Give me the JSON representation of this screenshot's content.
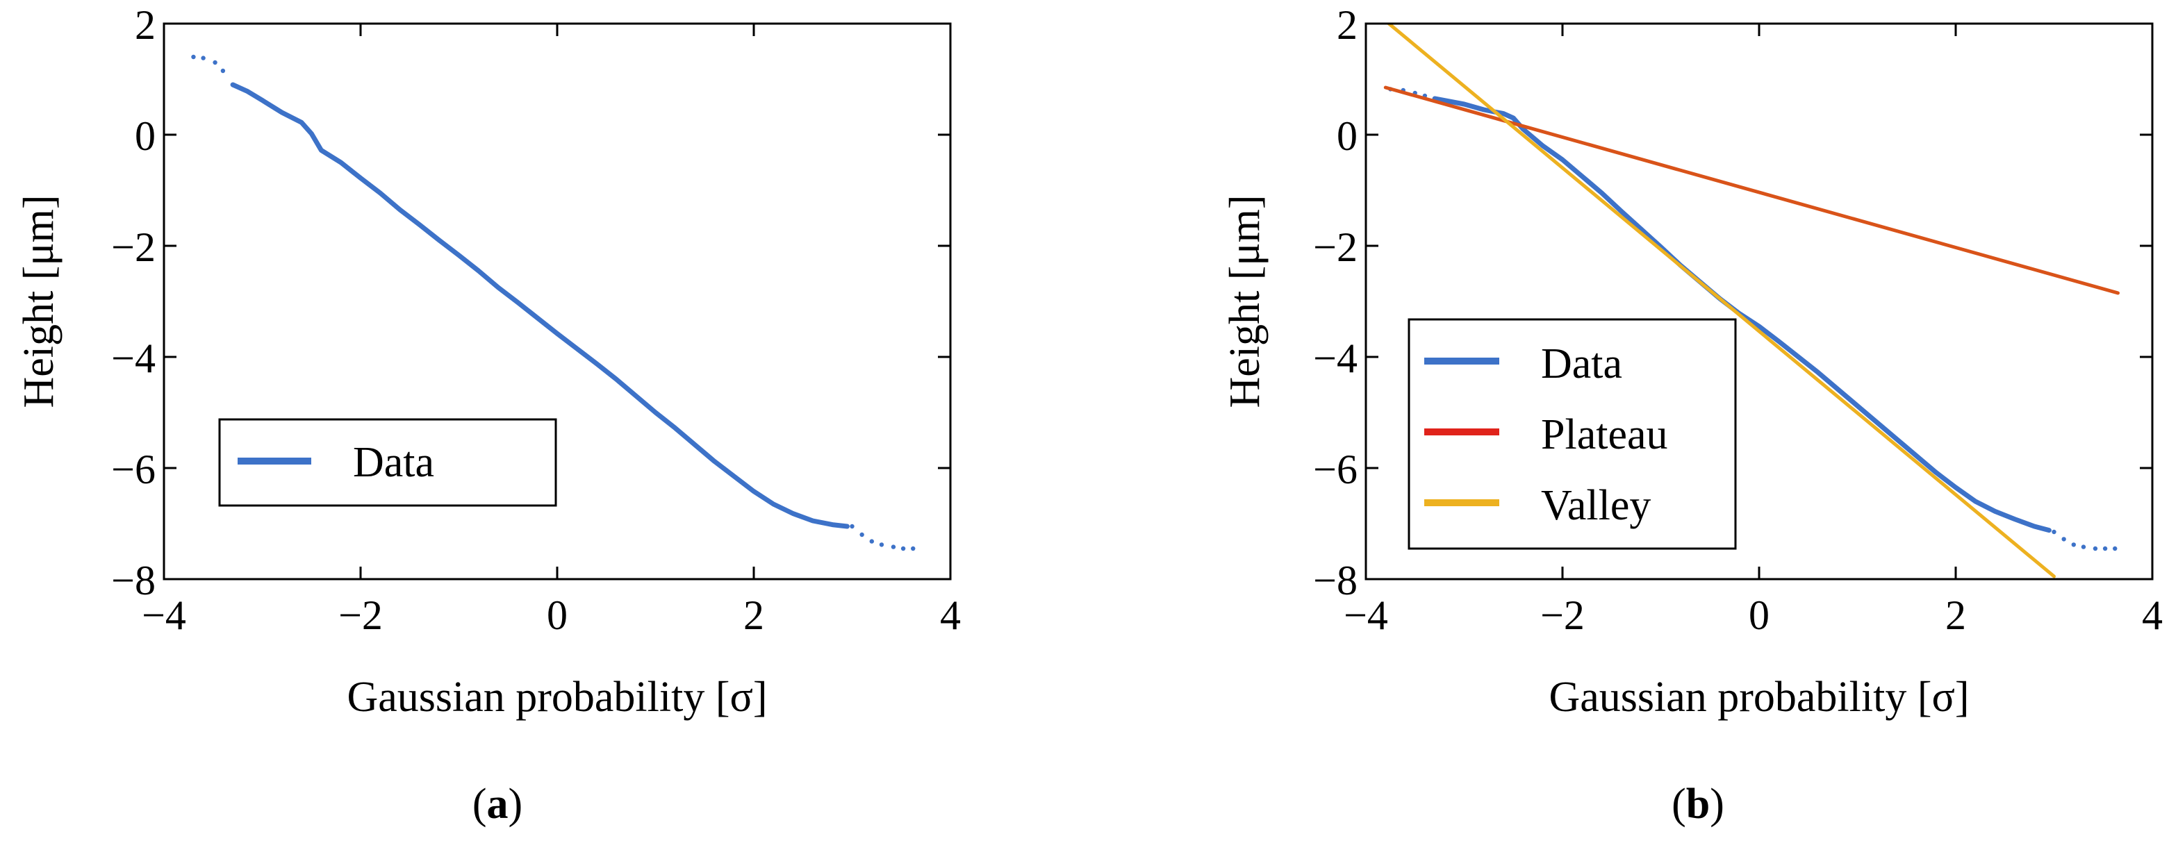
{
  "chart_data": [
    {
      "type": "line",
      "panel_label": "(a)",
      "panel_letter": "a",
      "xlabel": "Gaussian probability [σ]",
      "ylabel": "Height [μm]",
      "xlim": [
        -4,
        4
      ],
      "ylim": [
        -8,
        2
      ],
      "xticks": [
        -4,
        -2,
        0,
        2,
        4
      ],
      "yticks": [
        2,
        0,
        -2,
        -4,
        -6,
        -8
      ],
      "xtick_labels": [
        "−4",
        "−2",
        "0",
        "2",
        "4"
      ],
      "ytick_labels": [
        "2",
        "0",
        "−2",
        "−4",
        "−6",
        "−8"
      ],
      "legend_position": "lower-left",
      "series": [
        {
          "name": "Data",
          "color": "#3d72c8",
          "style": "scatter-line",
          "sparse_points": [
            {
              "x": -3.7,
              "y": 1.4
            },
            {
              "x": -3.6,
              "y": 1.38
            },
            {
              "x": -3.48,
              "y": 1.3
            },
            {
              "x": -3.4,
              "y": 1.15
            },
            {
              "x": 3.0,
              "y": -7.05
            },
            {
              "x": 3.1,
              "y": -7.2
            },
            {
              "x": 3.2,
              "y": -7.32
            },
            {
              "x": 3.3,
              "y": -7.38
            },
            {
              "x": 3.42,
              "y": -7.42
            },
            {
              "x": 3.52,
              "y": -7.45
            },
            {
              "x": 3.62,
              "y": -7.45
            }
          ],
          "x": [
            -3.3,
            -3.15,
            -3.0,
            -2.8,
            -2.6,
            -2.5,
            -2.4,
            -2.2,
            -2.0,
            -1.8,
            -1.6,
            -1.4,
            -1.2,
            -1.0,
            -0.8,
            -0.6,
            -0.4,
            -0.2,
            0.0,
            0.2,
            0.4,
            0.6,
            0.8,
            1.0,
            1.2,
            1.4,
            1.6,
            1.8,
            2.0,
            2.2,
            2.4,
            2.6,
            2.8,
            2.95
          ],
          "y": [
            0.9,
            0.78,
            0.62,
            0.4,
            0.22,
            0.02,
            -0.28,
            -0.5,
            -0.78,
            -1.05,
            -1.35,
            -1.62,
            -1.9,
            -2.17,
            -2.45,
            -2.75,
            -3.02,
            -3.3,
            -3.58,
            -3.85,
            -4.12,
            -4.4,
            -4.7,
            -5.0,
            -5.28,
            -5.58,
            -5.88,
            -6.15,
            -6.42,
            -6.65,
            -6.82,
            -6.95,
            -7.02,
            -7.05
          ]
        }
      ]
    },
    {
      "type": "line",
      "panel_label": "(b)",
      "panel_letter": "b",
      "xlabel": "Gaussian probability [σ]",
      "ylabel": "Height [μm]",
      "xlim": [
        -4,
        4
      ],
      "ylim": [
        -8,
        2
      ],
      "xticks": [
        -4,
        -2,
        0,
        2,
        4
      ],
      "yticks": [
        2,
        0,
        -2,
        -4,
        -6,
        -8
      ],
      "xtick_labels": [
        "−4",
        "−2",
        "0",
        "2",
        "4"
      ],
      "ytick_labels": [
        "2",
        "0",
        "−2",
        "−4",
        "−6",
        "−8"
      ],
      "legend_position": "center-left",
      "series": [
        {
          "name": "Data",
          "color": "#3d72c8",
          "style": "scatter-line",
          "sparse_points": [
            {
              "x": -3.75,
              "y": 0.82
            },
            {
              "x": -3.62,
              "y": 0.8
            },
            {
              "x": -3.5,
              "y": 0.75
            },
            {
              "x": -3.4,
              "y": 0.7
            },
            {
              "x": 3.0,
              "y": -7.15
            },
            {
              "x": 3.1,
              "y": -7.28
            },
            {
              "x": 3.2,
              "y": -7.38
            },
            {
              "x": 3.3,
              "y": -7.42
            },
            {
              "x": 3.42,
              "y": -7.45
            },
            {
              "x": 3.52,
              "y": -7.45
            },
            {
              "x": 3.62,
              "y": -7.45
            }
          ],
          "x": [
            -3.3,
            -3.0,
            -2.8,
            -2.6,
            -2.5,
            -2.4,
            -2.2,
            -2.0,
            -1.8,
            -1.6,
            -1.4,
            -1.2,
            -1.0,
            -0.8,
            -0.6,
            -0.4,
            -0.2,
            0.0,
            0.2,
            0.4,
            0.6,
            0.8,
            1.0,
            1.2,
            1.4,
            1.6,
            1.8,
            2.0,
            2.2,
            2.4,
            2.6,
            2.8,
            2.95
          ],
          "y": [
            0.65,
            0.55,
            0.45,
            0.38,
            0.3,
            0.1,
            -0.2,
            -0.45,
            -0.75,
            -1.05,
            -1.38,
            -1.7,
            -2.02,
            -2.35,
            -2.65,
            -2.95,
            -3.22,
            -3.45,
            -3.72,
            -4.0,
            -4.28,
            -4.58,
            -4.88,
            -5.18,
            -5.48,
            -5.78,
            -6.08,
            -6.35,
            -6.6,
            -6.78,
            -6.92,
            -7.05,
            -7.12
          ]
        },
        {
          "name": "Plateau",
          "color": "#d95319",
          "legend_color": "#e0231b",
          "style": "line",
          "x": [
            -3.8,
            3.65
          ],
          "y": [
            0.85,
            -2.85
          ]
        },
        {
          "name": "Valley",
          "color": "#edb120",
          "style": "line",
          "x": [
            -3.8,
            3.0
          ],
          "y": [
            2.05,
            -7.95
          ]
        }
      ]
    }
  ]
}
